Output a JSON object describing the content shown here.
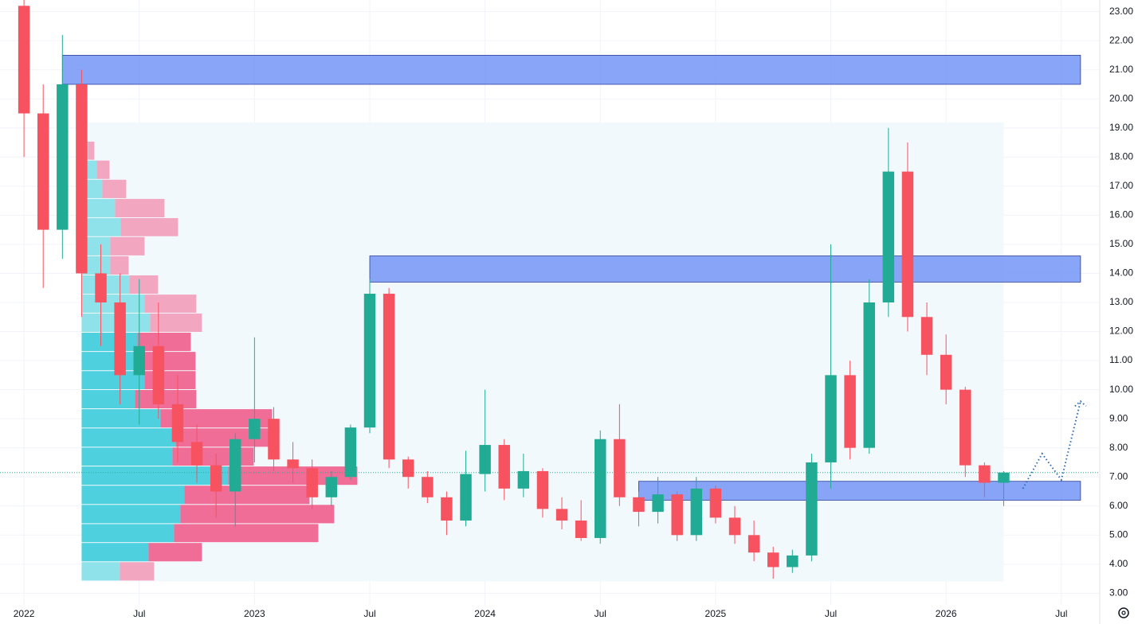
{
  "chart_data": {
    "type": "candlestick",
    "x": [
      "2022-01",
      "2022-02",
      "2022-03",
      "2022-04",
      "2022-05",
      "2022-06",
      "2022-07",
      "2022-08",
      "2022-09",
      "2022-10",
      "2022-11",
      "2022-12",
      "2023-01",
      "2023-02",
      "2023-03",
      "2023-04",
      "2023-05",
      "2023-06",
      "2023-07",
      "2023-08",
      "2023-09",
      "2023-10",
      "2023-11",
      "2023-12",
      "2024-01",
      "2024-02",
      "2024-03",
      "2024-04",
      "2024-05",
      "2024-06",
      "2024-07",
      "2024-08",
      "2024-09",
      "2024-10",
      "2024-11",
      "2024-12",
      "2025-01",
      "2025-02",
      "2025-03",
      "2025-04",
      "2025-05",
      "2025-06",
      "2025-07",
      "2025-08",
      "2025-09",
      "2025-10",
      "2025-11",
      "2025-12",
      "2026-01",
      "2026-02",
      "2026-03",
      "2026-04"
    ],
    "open": [
      23.2,
      19.5,
      15.5,
      20.5,
      14,
      13,
      10.5,
      11.5,
      9.5,
      8.2,
      7.4,
      6.5,
      8.3,
      9,
      7.6,
      7.3,
      6.3,
      7,
      8.7,
      13.3,
      7.6,
      7,
      6.3,
      5.5,
      7.1,
      8.1,
      6.6,
      7.2,
      5.9,
      5.5,
      4.9,
      8.3,
      6.3,
      5.8,
      6.4,
      5,
      6.6,
      5.6,
      5,
      4.4,
      3.9,
      4.3,
      7.5,
      10.5,
      8,
      13,
      17.5,
      12.5,
      11.2,
      10,
      7.4,
      6.8
    ],
    "high": [
      23.4,
      20.5,
      22.2,
      21,
      15,
      14,
      13.8,
      13,
      10.5,
      8.8,
      7.8,
      8.5,
      11.8,
      9.4,
      8.2,
      7.6,
      7.2,
      8.8,
      13.8,
      13.5,
      7.7,
      7.2,
      6.5,
      7.9,
      10,
      8.3,
      7.8,
      7.3,
      6.3,
      6.2,
      8.6,
      9.5,
      6.5,
      7,
      6.5,
      7,
      6.7,
      6,
      5.5,
      4.6,
      4.5,
      7.8,
      15,
      11,
      13.8,
      19,
      18.5,
      13,
      11.9,
      10.1,
      7.5,
      7.2
    ],
    "low": [
      18,
      13.5,
      14.5,
      12.5,
      11.5,
      9.5,
      8.8,
      9,
      7.5,
      6.8,
      5.6,
      5.3,
      7.5,
      7.2,
      6.8,
      5.9,
      6,
      6.9,
      8.5,
      7.3,
      6.6,
      6.1,
      5,
      5.3,
      6.5,
      6.2,
      6.3,
      5.6,
      5.2,
      4.8,
      4.7,
      6,
      5.3,
      5.4,
      4.8,
      4.8,
      5.4,
      4.7,
      4.1,
      3.5,
      3.7,
      4.1,
      6.6,
      7.6,
      7.8,
      12.5,
      12,
      10.5,
      9.5,
      7,
      6.3,
      6
    ],
    "close": [
      19.5,
      15.5,
      20.5,
      14,
      13,
      10.5,
      11.5,
      9.5,
      8.2,
      7.4,
      6.5,
      8.3,
      9,
      7.6,
      7.3,
      6.3,
      7,
      8.7,
      13.3,
      7.6,
      7,
      6.3,
      5.5,
      7.1,
      8.1,
      6.6,
      7.2,
      5.9,
      5.5,
      4.9,
      8.3,
      6.3,
      5.8,
      6.4,
      5,
      6.6,
      5.6,
      5,
      4.4,
      3.9,
      4.3,
      7.5,
      10.5,
      8,
      13,
      17.5,
      12.5,
      11.2,
      10,
      7.4,
      6.8,
      7.15
    ],
    "up_color": "#22ab94",
    "down_color": "#f7525f",
    "xlim": [
      "2021-12",
      "2026-09"
    ],
    "ylim": [
      2.6,
      23.4
    ],
    "xticks": [
      {
        "value": "2022-01",
        "label": "2022"
      },
      {
        "value": "2022-07",
        "label": "Jul"
      },
      {
        "value": "2023-01",
        "label": "2023"
      },
      {
        "value": "2023-07",
        "label": "Jul"
      },
      {
        "value": "2024-01",
        "label": "2024"
      },
      {
        "value": "2024-07",
        "label": "Jul"
      },
      {
        "value": "2025-01",
        "label": "2025"
      },
      {
        "value": "2025-07",
        "label": "Jul"
      },
      {
        "value": "2026-01",
        "label": "2026"
      },
      {
        "value": "2026-07",
        "label": "Jul"
      }
    ],
    "yticks": [
      {
        "value": 3,
        "label": "3.00"
      },
      {
        "value": 4,
        "label": "4.00"
      },
      {
        "value": 5,
        "label": "5.00"
      },
      {
        "value": 6,
        "label": "6.00"
      },
      {
        "value": 7,
        "label": "7.00"
      },
      {
        "value": 8,
        "label": "8.00"
      },
      {
        "value": 9,
        "label": "9.00"
      },
      {
        "value": 10,
        "label": "10.00"
      },
      {
        "value": 11,
        "label": "11.00"
      },
      {
        "value": 12,
        "label": "12.00"
      },
      {
        "value": 13,
        "label": "13.00"
      },
      {
        "value": 14,
        "label": "14.00"
      },
      {
        "value": 15,
        "label": "15.00"
      },
      {
        "value": 16,
        "label": "16.00"
      },
      {
        "value": 17,
        "label": "17.00"
      },
      {
        "value": 18,
        "label": "18.00"
      },
      {
        "value": 19,
        "label": "19.00"
      },
      {
        "value": 20,
        "label": "20.00"
      },
      {
        "value": 21,
        "label": "21.00"
      },
      {
        "value": 22,
        "label": "22.00"
      },
      {
        "value": 23,
        "label": "23.00"
      }
    ],
    "grid": true,
    "zones": [
      {
        "x0": "2022-03",
        "x1": "2026-08",
        "y0": 20.5,
        "y1": 21.5,
        "color": "#6b8ff5"
      },
      {
        "x0": "2023-07",
        "x1": "2026-08",
        "y0": 13.7,
        "y1": 14.6,
        "color": "#6b8ff5"
      },
      {
        "x0": "2024-09",
        "x1": "2026-08",
        "y0": 6.2,
        "y1": 6.85,
        "color": "#6b8ff5"
      }
    ],
    "volume_profile": {
      "start": "2022-04",
      "end": "2026-04",
      "bins": [
        19.19,
        18.53,
        17.88,
        17.22,
        16.56,
        15.9,
        15.25,
        14.59,
        13.93,
        13.27,
        12.62,
        11.96,
        11.3,
        10.64,
        9.99,
        9.33,
        8.67,
        8.01,
        7.36,
        6.7,
        6.04,
        5.38,
        4.73,
        4.07,
        3.41
      ],
      "up": [
        6,
        8,
        19,
        26,
        42,
        49,
        36,
        36,
        60,
        79,
        86,
        70,
        79,
        79,
        67,
        99,
        118,
        114,
        184,
        129,
        124,
        116,
        84,
        48
      ],
      "down": [
        0,
        8,
        16,
        30,
        62,
        72,
        43,
        23,
        36,
        65,
        65,
        67,
        64,
        64,
        77,
        140,
        125,
        102,
        162,
        157,
        193,
        181,
        67,
        43
      ],
      "value_area": [
        4.07,
        11.96
      ],
      "up_color": "#4fd0df",
      "down_color": "#ef6d97",
      "up_color_light": "#8fe1ea",
      "down_color_light": "#f3a6c0",
      "background": "#f2f9fd"
    },
    "projection": {
      "x": [
        "2026-05",
        "2026-06",
        "2026-07",
        "2026-08"
      ],
      "values": [
        6.6,
        7.8,
        6.9,
        9.6
      ],
      "color": "#2f6bb5"
    }
  }
}
